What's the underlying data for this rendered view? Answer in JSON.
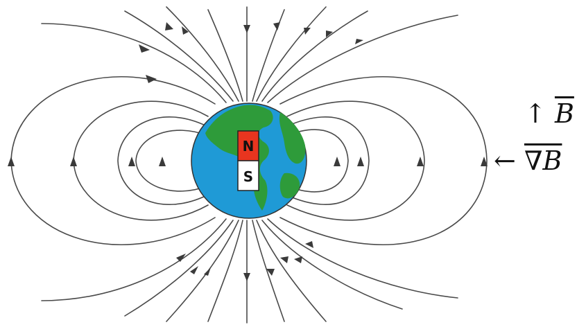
{
  "magnet": {
    "north_label": "N",
    "south_label": "S",
    "north_color": "#e8351f",
    "south_color": "#ffffff"
  },
  "earth": {
    "ocean_color": "#1f9ad6",
    "land_color": "#2e9b3a"
  },
  "field_line_color": "#4a4a4a",
  "legend": {
    "b_arrow": "↑",
    "b_symbol": "B",
    "grad_arrow": "←",
    "grad_symbol": "∇B"
  }
}
